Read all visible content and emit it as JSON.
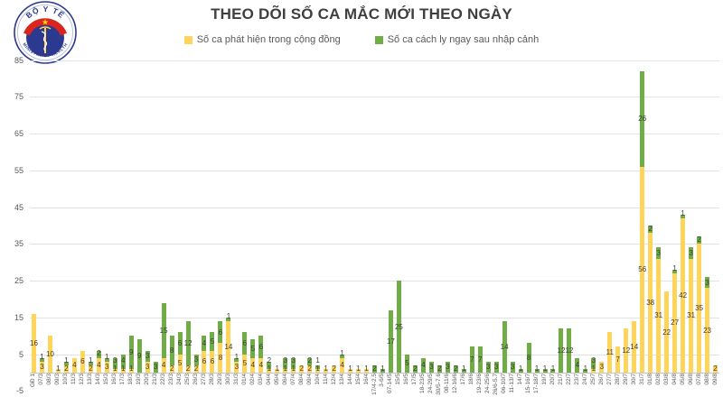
{
  "logo": {
    "top_text": "BỘ Y TẾ",
    "bottom_text": "MINISTRY OF HEALTH"
  },
  "chart": {
    "title": "THEO DÕI SỐ CA MẮC MỚI THEO NGÀY",
    "legend": [
      {
        "label": "Số ca phát hiện trong cộng đồng",
        "color": "#FFD45B"
      },
      {
        "label": "Số ca cách ly ngay sau nhập cảnh",
        "color": "#70AD47"
      }
    ]
  },
  "chart_data": {
    "type": "bar",
    "stacked": true,
    "title": "THEO DÕI SỐ CA MẮC MỚI THEO NGÀY",
    "xlabel": "",
    "ylabel": "",
    "ylim": [
      -5,
      85
    ],
    "y_ticks": [
      -5,
      5,
      15,
      25,
      35,
      45,
      55,
      65,
      75,
      85
    ],
    "grid": true,
    "legend_position": "top",
    "data_labels": true,
    "categories": [
      "GĐ 1",
      "07/3",
      "08/3",
      "09/3",
      "10/3",
      "11/3",
      "12/3",
      "13/3",
      "14/3",
      "15/3",
      "16/3",
      "17/3",
      "18/3",
      "19/3",
      "20/3",
      "21/3",
      "22/3",
      "23/3",
      "24/3",
      "25/3",
      "26/3",
      "27/3",
      "28/3",
      "29/3",
      "30/3",
      "31/3",
      "01/4",
      "02/4",
      "03/4",
      "04/4",
      "05/4",
      "06/4",
      "07/4",
      "08/4",
      "09/4",
      "10/4",
      "11/4",
      "12/4",
      "13/4",
      "14/4",
      "15/4",
      "16/4",
      "17/4-2.5",
      "3-6/5",
      "07-14/5",
      "15/5",
      "16/5",
      "17/5",
      "18-23/5",
      "24-29/5",
      "30/5-7.6",
      "08-11/6",
      "12-16/6",
      "17/6",
      "18/6",
      "19-23/6",
      "24-25/6",
      "26/6-5.7",
      "06-10/7",
      "11-13/7",
      "14/7",
      "15-16/7",
      "17-18/7",
      "19/7",
      "20/7",
      "21/7",
      "22/7",
      "23/7",
      "24/7",
      "25/7",
      "26/7",
      "27/7",
      "28/7",
      "29/7",
      "30/7",
      "31/7",
      "01/8",
      "02/8",
      "03/8",
      "04/8",
      "05/8",
      "06/8",
      "07/8",
      "08/8",
      "09/8"
    ],
    "series": [
      {
        "name": "Số ca phát hiện trong cộng đồng",
        "color": "#FFD45B",
        "values": [
          16,
          3,
          10,
          1,
          2,
          4,
          6,
          2,
          4,
          3,
          1,
          1,
          1,
          0,
          3,
          0,
          4,
          2,
          5,
          2,
          2,
          6,
          6,
          8,
          14,
          3,
          5,
          4,
          4,
          1,
          1,
          1,
          1,
          2,
          2,
          1,
          1,
          2,
          4,
          1,
          1,
          1,
          0,
          0,
          0,
          0,
          0,
          0,
          0,
          0,
          0,
          0,
          0,
          0,
          0,
          0,
          0,
          0,
          0,
          0,
          0,
          0,
          0,
          0,
          0,
          0,
          0,
          0,
          0,
          1,
          3,
          11,
          7,
          12,
          14,
          56,
          38,
          31,
          22,
          27,
          42,
          31,
          35,
          23,
          2
        ]
      },
      {
        "name": "Số ca cách ly ngay sau nhập cảnh",
        "color": "#70AD47",
        "values": [
          0,
          1,
          0,
          0,
          1,
          0,
          0,
          1,
          2,
          1,
          3,
          4,
          9,
          9,
          3,
          3,
          15,
          8,
          6,
          12,
          3,
          4,
          5,
          6,
          1,
          1,
          6,
          5,
          6,
          2,
          0,
          3,
          3,
          0,
          2,
          1,
          0,
          0,
          1,
          0,
          0,
          0,
          2,
          1,
          17,
          25,
          5,
          2,
          4,
          3,
          2,
          3,
          2,
          1,
          7,
          7,
          3,
          3,
          14,
          3,
          1,
          8,
          1,
          1,
          1,
          12,
          12,
          4,
          1,
          3,
          0,
          0,
          0,
          0,
          0,
          26,
          2,
          3,
          0,
          1,
          1,
          3,
          2,
          3,
          0
        ]
      }
    ]
  }
}
